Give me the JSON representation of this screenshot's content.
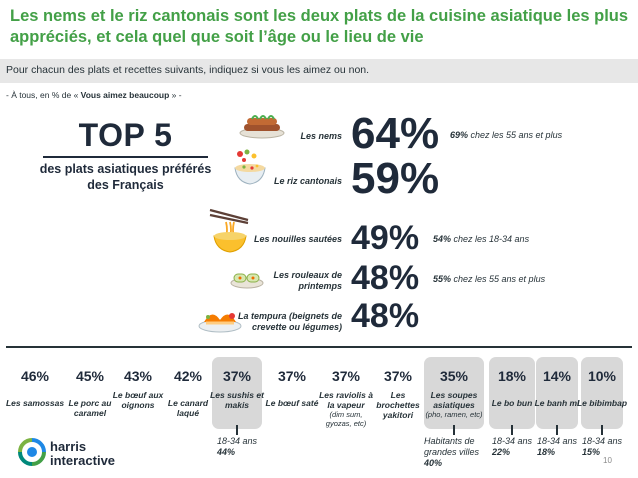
{
  "headline": "Les nems et le riz cantonais sont les deux plats de la cuisine asiatique les plus appréciés, et cela quel que soit l’âge ou le lieu de vie",
  "question": "Pour chacun des plats et recettes suivants, indiquez si vous les aimez ou non.",
  "filter": {
    "prefix": "- À tous, en % de « ",
    "emphasis": "Vous aimez beaucoup",
    "suffix": " » -"
  },
  "top5": {
    "title": "TOP 5",
    "subtitle": "des plats asiatiques préférés des Français"
  },
  "colors": {
    "headline": "#43a047",
    "text": "#1f2a3a",
    "question_band": "#e7e7e7",
    "highlight_box": "#d8d8d8"
  },
  "chart_data": {
    "type": "bar",
    "ylabel": "% Vous aimez beaucoup",
    "ranked": [
      {
        "category": "Les nems",
        "value": 64,
        "display": "64%",
        "icon": "spring-rolls-plate-icon",
        "note_value": "69%",
        "note_text": " chez les 55 ans et plus"
      },
      {
        "category": "Le riz cantonais",
        "value": 59,
        "display": "59%",
        "icon": "rice-bowl-icon",
        "note_value": "",
        "note_text": ""
      },
      {
        "category": "Les nouilles sautées",
        "value": 49,
        "display": "49%",
        "icon": "noodles-chopsticks-icon",
        "note_value": "54%",
        "note_text": " chez les 18-34 ans"
      },
      {
        "category": "Les rouleaux de printemps",
        "value": 48,
        "display": "48%",
        "icon": "spring-rolls-icon",
        "note_value": "55%",
        "note_text": " chez les 55 ans et plus"
      },
      {
        "category": "La tempura (beignets de crevette ou légumes)",
        "value": 48,
        "display": "48%",
        "icon": "tempura-icon",
        "note_value": "",
        "note_text": ""
      }
    ],
    "others": [
      {
        "category": "Les samossas",
        "sub": "",
        "value": 46,
        "display": "46%",
        "highlighted": false,
        "note": null
      },
      {
        "category": "Le porc au caramel",
        "sub": "",
        "value": 45,
        "display": "45%",
        "highlighted": false,
        "note": null
      },
      {
        "category": "Le bœuf aux oignons",
        "sub": "",
        "value": 43,
        "display": "43%",
        "highlighted": false,
        "note": null
      },
      {
        "category": "Le canard laqué",
        "sub": "",
        "value": 42,
        "display": "42%",
        "highlighted": false,
        "note": null
      },
      {
        "category": "Les sushis et makis",
        "sub": "",
        "value": 37,
        "display": "37%",
        "highlighted": true,
        "note": {
          "line1": "18-34 ans",
          "value": "44%"
        }
      },
      {
        "category": "Le bœuf saté",
        "sub": "",
        "value": 37,
        "display": "37%",
        "highlighted": false,
        "note": null
      },
      {
        "category": "Les raviolis à la vapeur",
        "sub": "(dim sum, gyozas, etc)",
        "value": 37,
        "display": "37%",
        "highlighted": false,
        "note": null
      },
      {
        "category": "Les brochettes yakitori",
        "sub": "",
        "value": 37,
        "display": "37%",
        "highlighted": false,
        "note": null
      },
      {
        "category": "Les soupes asiatiques",
        "sub": "(pho, ramen, etc)",
        "value": 35,
        "display": "35%",
        "highlighted": true,
        "note": {
          "line1": "Habitants de grandes villes",
          "value": "40%"
        }
      },
      {
        "category": "Le bo bun",
        "sub": "",
        "value": 18,
        "display": "18%",
        "highlighted": true,
        "note": {
          "line1": "18-34 ans",
          "value": "22%"
        }
      },
      {
        "category": "Le banh mi",
        "sub": "",
        "value": 14,
        "display": "14%",
        "highlighted": true,
        "note": {
          "line1": "18-34 ans",
          "value": "18%"
        }
      },
      {
        "category": "Le bibimbap",
        "sub": "",
        "value": 10,
        "display": "10%",
        "highlighted": true,
        "note": {
          "line1": "18-34 ans",
          "value": "15%"
        }
      }
    ]
  },
  "logo": {
    "line1": "harris",
    "line2": "interactive"
  },
  "page_number": "10"
}
